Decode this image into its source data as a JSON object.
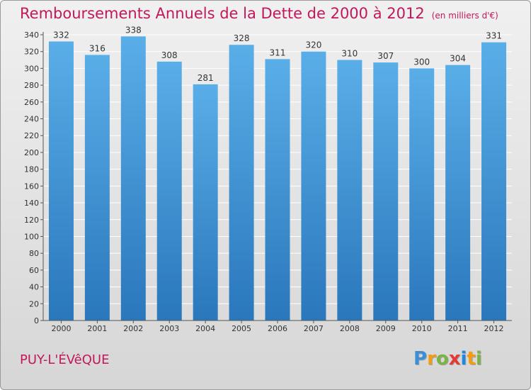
{
  "title": "Remboursements Annuels de la Dette de 2000 à 2012",
  "title_unit": "(en milliers d'€)",
  "place": "PUY-L'ÉVêQUE",
  "logo": {
    "letters": [
      "P",
      "r",
      "o",
      "x",
      "i",
      "t",
      "i"
    ],
    "colors": [
      "#3a8fd6",
      "#f39c12",
      "#7cb342",
      "#e53935",
      "#1e88e5",
      "#f39c12",
      "#7cb342"
    ]
  },
  "colors": {
    "bar_top": "#5aaee8",
    "bar_bottom": "#2a77bc",
    "axis": "#555555",
    "grid": "#ffffff",
    "title": "#c2185b"
  },
  "chart_data": {
    "type": "bar",
    "categories": [
      "2000",
      "2001",
      "2002",
      "2003",
      "2004",
      "2005",
      "2006",
      "2007",
      "2008",
      "2009",
      "2010",
      "2011",
      "2012"
    ],
    "values": [
      332,
      316,
      338,
      308,
      281,
      328,
      311,
      320,
      310,
      307,
      300,
      304,
      331
    ],
    "ylim": [
      0,
      340
    ],
    "yticks": [
      0,
      20,
      40,
      60,
      80,
      100,
      120,
      140,
      160,
      180,
      200,
      220,
      240,
      260,
      280,
      300,
      320,
      340
    ],
    "grid": true
  }
}
